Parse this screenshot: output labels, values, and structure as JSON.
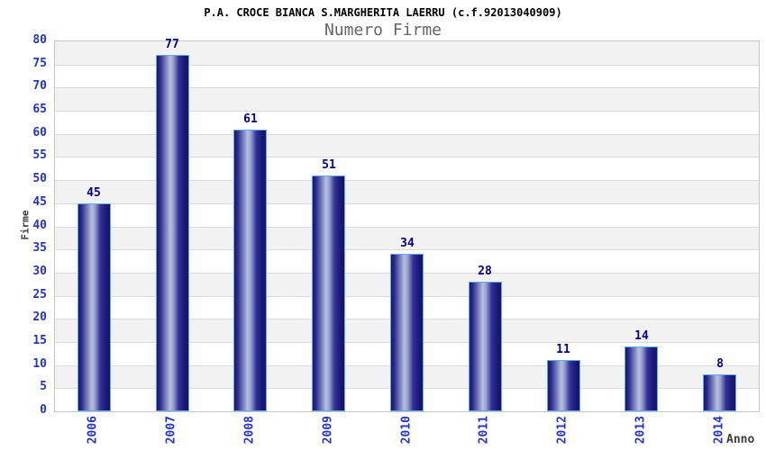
{
  "chart_data": {
    "type": "bar",
    "title": "P.A. CROCE BIANCA S.MARGHERITA LAERRU (c.f.92013040909)",
    "subtitle": "Numero Firme",
    "xlabel": "Anno",
    "ylabel": "Firme",
    "categories": [
      "2006",
      "2007",
      "2008",
      "2009",
      "2010",
      "2011",
      "2012",
      "2013",
      "2014"
    ],
    "values": [
      45,
      77,
      61,
      51,
      34,
      28,
      11,
      14,
      8
    ],
    "ylim": [
      0,
      80
    ],
    "ytick_step": 5,
    "yticks": [
      0,
      5,
      10,
      15,
      20,
      25,
      30,
      35,
      40,
      45,
      50,
      55,
      60,
      65,
      70,
      75,
      80
    ],
    "grid": "horizontal-bands-alternating",
    "legend": "none",
    "style": {
      "title_color": "#000000",
      "subtitle_color": "#666666",
      "axis_label_color": "#3d3d3d",
      "tick_label_color": "#2233cc",
      "value_label_color": "#00008b",
      "band_color": "#f2f2f2",
      "band_alt_color": "#ffffff",
      "gridline_color": "#dadada",
      "plot_border_color": "#c6c6c6",
      "bar_border_color": "#5ea9f2",
      "bar_gradient": [
        "#17176f",
        "#2a2a8c",
        "#8790c4",
        "#b6c0e0",
        "#99a3ce",
        "#303098",
        "#1a1a74",
        "#14146a"
      ]
    }
  }
}
